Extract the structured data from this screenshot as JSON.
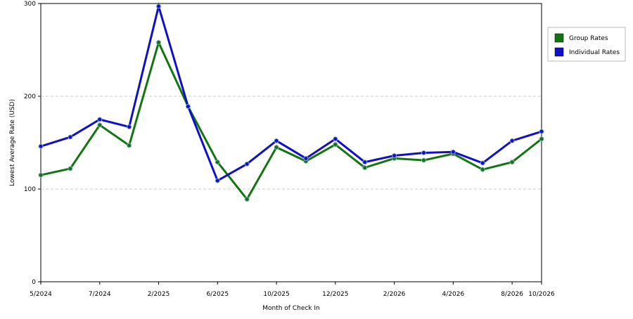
{
  "chart_data": {
    "type": "line",
    "x_label": "Month of Check In",
    "y_label": "Lowest Average Rate (USD)",
    "categories": [
      "5/2024",
      null,
      "7/2024",
      null,
      "2/2025",
      null,
      "6/2025",
      null,
      "10/2025",
      null,
      "12/2025",
      null,
      "2/2026",
      null,
      "4/2026",
      null,
      "8/2026",
      "10/2026"
    ],
    "series": [
      {
        "name": "Group Rates",
        "color": "#127512",
        "values": [
          115,
          122,
          169,
          147,
          258,
          189,
          129,
          89,
          145,
          130,
          148,
          123,
          133,
          131,
          138,
          121,
          129,
          154
        ]
      },
      {
        "name": "Individual Rates",
        "color": "#1010c8",
        "values": [
          146,
          156,
          175,
          167,
          297,
          189,
          109,
          127,
          152,
          133,
          154,
          129,
          136,
          139,
          140,
          128,
          152,
          162
        ]
      }
    ],
    "ylim": [
      0,
      300
    ],
    "yticks": [
      0,
      100,
      200,
      300
    ],
    "grid": true,
    "legend": "right"
  }
}
